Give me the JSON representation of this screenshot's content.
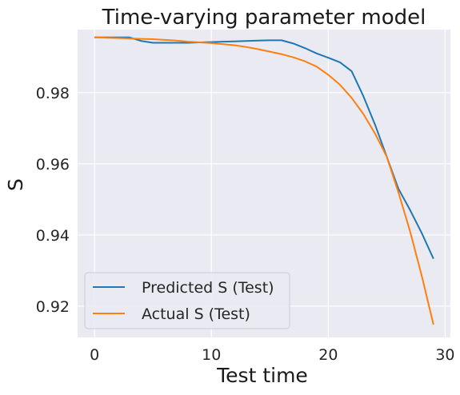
{
  "chart_data": {
    "type": "line",
    "title": "Time-varying parameter model",
    "xlabel": "Test time",
    "ylabel": "S",
    "xlim": [
      -1.45,
      30.45
    ],
    "ylim": [
      0.9112,
      0.9977
    ],
    "xticks": [
      0,
      10,
      20,
      30
    ],
    "yticks": [
      0.92,
      0.94,
      0.96,
      0.98
    ],
    "ytick_labels": [
      "0.92",
      "0.94",
      "0.96",
      "0.98"
    ],
    "grid": true,
    "background": "#eaeaf2",
    "legend_position": "lower-left",
    "series": [
      {
        "name": "Predicted S (Test)",
        "color": "#1f77b4",
        "x": [
          0,
          1,
          2,
          3,
          4,
          5,
          6,
          7,
          8,
          9,
          10,
          11,
          12,
          13,
          14,
          15,
          16,
          17,
          18,
          19,
          20,
          21,
          22,
          23,
          24,
          25,
          26,
          27,
          28,
          29
        ],
        "y": [
          0.9955,
          0.9955,
          0.9955,
          0.9955,
          0.9945,
          0.994,
          0.994,
          0.994,
          0.994,
          0.9941,
          0.9942,
          0.9943,
          0.9944,
          0.9945,
          0.9946,
          0.9947,
          0.9947,
          0.9938,
          0.9925,
          0.991,
          0.9898,
          0.9885,
          0.986,
          0.979,
          0.971,
          0.962,
          0.953,
          0.947,
          0.9405,
          0.9333
        ]
      },
      {
        "name": "Actual S (Test)",
        "color": "#ff7f0e",
        "x": [
          0,
          1,
          2,
          3,
          4,
          5,
          6,
          7,
          8,
          9,
          10,
          11,
          12,
          13,
          14,
          15,
          16,
          17,
          18,
          19,
          20,
          21,
          22,
          23,
          24,
          25,
          26,
          27,
          28,
          29
        ],
        "y": [
          0.9955,
          0.9954,
          0.9953,
          0.9952,
          0.9951,
          0.995,
          0.9948,
          0.9946,
          0.9943,
          0.9941,
          0.9939,
          0.9936,
          0.9933,
          0.9928,
          0.9922,
          0.9915,
          0.9908,
          0.9899,
          0.9888,
          0.9873,
          0.985,
          0.9822,
          0.9785,
          0.974,
          0.9685,
          0.962,
          0.952,
          0.941,
          0.9285,
          0.9148
        ]
      }
    ]
  }
}
